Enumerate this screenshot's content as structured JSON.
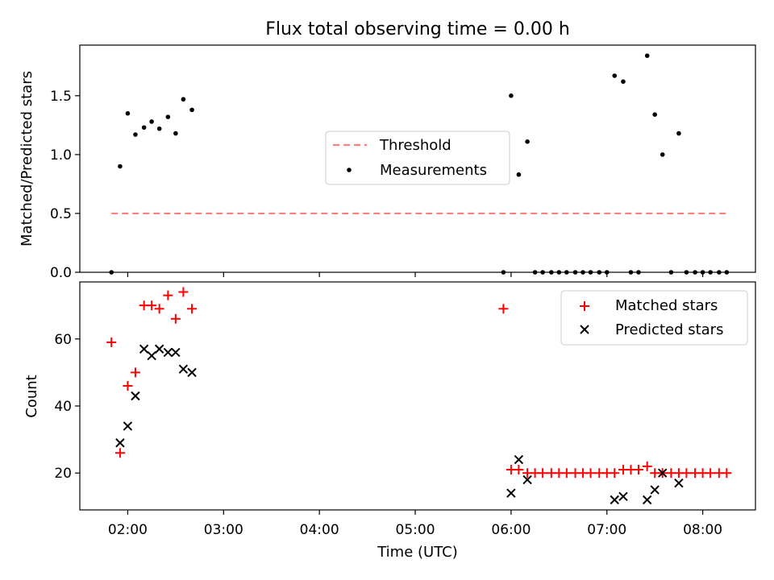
{
  "chart_data": {
    "title": "Flux total observing time = 0.00 h",
    "xlabel": "Time (UTC)",
    "x_ticks": [
      "02:00",
      "03:00",
      "04:00",
      "05:00",
      "06:00",
      "07:00",
      "08:00"
    ],
    "x_tick_hours": [
      2,
      3,
      4,
      5,
      6,
      7,
      8
    ],
    "xlim_hours": [
      1.5,
      8.55
    ],
    "colors": {
      "threshold": "#ff7f7f",
      "measurements": "#000000",
      "matched": "#ff0000",
      "predicted": "#000000"
    },
    "panels": [
      {
        "type": "line+scatter",
        "ylabel": "Matched/Predicted stars",
        "ylim": [
          0,
          1.93
        ],
        "y_ticks": [
          0.0,
          0.5,
          1.0,
          1.5
        ],
        "y_tick_labels": [
          "0.0",
          "0.5",
          "1.0",
          "1.5"
        ],
        "legend_position": "center",
        "series": [
          {
            "name": "Threshold",
            "kind": "dashed-line",
            "x_hours": [
              1.83,
              8.25
            ],
            "y": [
              0.5,
              0.5
            ]
          },
          {
            "name": "Measurements",
            "kind": "scatter",
            "x_hours": [
              1.83,
              1.92,
              2.0,
              2.08,
              2.17,
              2.25,
              2.33,
              2.42,
              2.5,
              2.58,
              2.67,
              5.92,
              6.0,
              6.08,
              6.17,
              6.25,
              6.33,
              6.42,
              6.5,
              6.58,
              6.67,
              6.75,
              6.83,
              6.92,
              7.0,
              7.08,
              7.17,
              7.25,
              7.33,
              7.42,
              7.5,
              7.58,
              7.67,
              7.75,
              7.83,
              7.92,
              8.0,
              8.08,
              8.17,
              8.25
            ],
            "y": [
              0.0,
              0.9,
              1.35,
              1.17,
              1.23,
              1.28,
              1.22,
              1.32,
              1.18,
              1.47,
              1.38,
              0.0,
              1.5,
              0.83,
              1.11,
              0.0,
              0.0,
              0.0,
              0.0,
              0.0,
              0.0,
              0.0,
              0.0,
              0.0,
              0.0,
              1.67,
              1.62,
              0.0,
              0.0,
              1.84,
              1.34,
              1.0,
              0.0,
              1.18,
              0.0,
              0.0,
              0.0,
              0.0,
              0.0,
              0.0
            ]
          }
        ]
      },
      {
        "type": "scatter",
        "ylabel": "Count",
        "ylim": [
          9,
          77
        ],
        "y_ticks": [
          20,
          40,
          60
        ],
        "y_tick_labels": [
          "20",
          "40",
          "60"
        ],
        "legend_position": "upper right",
        "series": [
          {
            "name": "Matched stars",
            "marker": "+",
            "x_hours": [
              1.83,
              1.92,
              2.0,
              2.08,
              2.17,
              2.25,
              2.33,
              2.42,
              2.5,
              2.58,
              2.67,
              5.92,
              6.0,
              6.08,
              6.17,
              6.25,
              6.33,
              6.42,
              6.5,
              6.58,
              6.67,
              6.75,
              6.83,
              6.92,
              7.0,
              7.08,
              7.17,
              7.25,
              7.33,
              7.42,
              7.5,
              7.58,
              7.67,
              7.75,
              7.83,
              7.92,
              8.0,
              8.08,
              8.17,
              8.25
            ],
            "y": [
              59,
              26,
              46,
              50,
              70,
              70,
              69,
              73,
              66,
              74,
              69,
              69,
              21,
              21,
              20,
              20,
              20,
              20,
              20,
              20,
              20,
              20,
              20,
              20,
              20,
              20,
              21,
              21,
              21,
              22,
              20,
              20,
              20,
              20,
              20,
              20,
              20,
              20,
              20,
              20
            ]
          },
          {
            "name": "Predicted stars",
            "marker": "x",
            "x_hours": [
              1.92,
              2.0,
              2.08,
              2.17,
              2.25,
              2.33,
              2.42,
              2.5,
              2.58,
              2.67,
              6.0,
              6.08,
              6.17,
              7.08,
              7.17,
              7.42,
              7.5,
              7.58,
              7.75
            ],
            "y": [
              29,
              34,
              43,
              57,
              55,
              57,
              56,
              56,
              51,
              50,
              14,
              24,
              18,
              12,
              13,
              12,
              15,
              20,
              17
            ]
          }
        ]
      }
    ]
  }
}
